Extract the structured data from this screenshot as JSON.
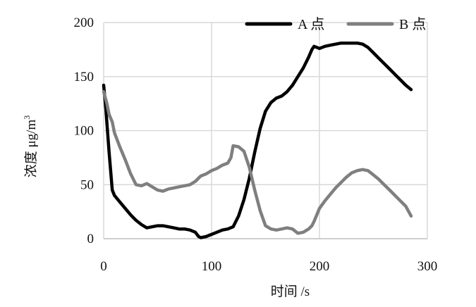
{
  "chart_data": {
    "type": "line",
    "title": "",
    "xlabel": "时间 /s",
    "ylabel": "浓度 μg/m³",
    "ylabel_main": "浓度 μg/m",
    "ylabel_sup": "3",
    "xlim": [
      0,
      300
    ],
    "ylim": [
      0,
      200
    ],
    "xticks": [
      0,
      100,
      200,
      300
    ],
    "yticks": [
      0,
      50,
      100,
      150,
      200
    ],
    "grid": true,
    "legend_position": "top-right",
    "series": [
      {
        "name": "A 点",
        "color": "#000000",
        "x": [
          0,
          2,
          5,
          8,
          10,
          15,
          20,
          25,
          30,
          35,
          40,
          45,
          50,
          55,
          60,
          65,
          70,
          75,
          80,
          85,
          88,
          90,
          95,
          100,
          105,
          110,
          115,
          120,
          125,
          130,
          135,
          140,
          145,
          150,
          155,
          160,
          165,
          170,
          175,
          180,
          185,
          190,
          193,
          195,
          200,
          205,
          210,
          215,
          220,
          225,
          230,
          235,
          240,
          245,
          250,
          255,
          260,
          265,
          270,
          275,
          280,
          285
        ],
        "y": [
          142,
          120,
          80,
          45,
          40,
          34,
          28,
          22,
          17,
          13,
          10,
          11,
          12,
          12,
          11,
          10,
          9,
          9,
          8,
          6,
          2,
          1,
          2,
          4,
          6,
          8,
          9,
          11,
          21,
          36,
          56,
          80,
          102,
          118,
          126,
          130,
          132,
          136,
          142,
          150,
          158,
          168,
          175,
          178,
          176,
          178,
          179,
          180,
          181,
          181,
          181,
          181,
          180,
          177,
          172,
          167,
          162,
          157,
          152,
          147,
          142,
          138
        ]
      },
      {
        "name": "B 点",
        "color": "#7f7f7f",
        "x": [
          0,
          3,
          5,
          8,
          10,
          15,
          20,
          25,
          30,
          35,
          40,
          45,
          50,
          55,
          60,
          65,
          70,
          75,
          80,
          85,
          88,
          90,
          95,
          100,
          105,
          110,
          115,
          118,
          120,
          125,
          130,
          135,
          140,
          145,
          150,
          155,
          160,
          165,
          170,
          175,
          180,
          185,
          190,
          193,
          195,
          200,
          205,
          210,
          215,
          220,
          225,
          230,
          235,
          240,
          245,
          250,
          255,
          260,
          265,
          270,
          275,
          280,
          285
        ],
        "y": [
          136,
          125,
          115,
          108,
          98,
          85,
          73,
          60,
          50,
          49,
          51,
          48,
          45,
          44,
          46,
          47,
          48,
          49,
          50,
          53,
          56,
          58,
          60,
          63,
          65,
          68,
          70,
          75,
          86,
          85,
          81,
          66,
          45,
          26,
          12,
          9,
          8,
          9,
          10,
          9,
          5,
          6,
          9,
          12,
          16,
          28,
          35,
          41,
          47,
          52,
          57,
          61,
          63,
          64,
          63,
          59,
          55,
          50,
          45,
          40,
          35,
          30,
          21
        ]
      }
    ]
  }
}
